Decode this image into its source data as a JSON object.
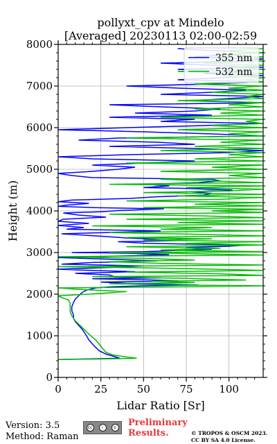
{
  "chart_data": {
    "type": "line",
    "title_line1": "pollyxt_cpv at Mindelo",
    "title_line2": "[Averaged] 20230113 02:00-02:59",
    "xlabel": "Lidar Ratio [Sr]",
    "ylabel": "Height (m)",
    "xlim": [
      0,
      120
    ],
    "ylim": [
      0,
      8000
    ],
    "x_ticks": [
      0,
      25,
      50,
      75,
      100
    ],
    "x_tick_labels": [
      "0",
      "25",
      "50",
      "75",
      "100"
    ],
    "y_ticks": [
      0,
      1000,
      2000,
      3000,
      4000,
      5000,
      6000,
      7000,
      8000
    ],
    "y_tick_labels": [
      "0",
      "1000",
      "2000",
      "3000",
      "4000",
      "5000",
      "6000",
      "7000",
      "8000"
    ],
    "grid": true,
    "legend_position": "top-right",
    "series": [
      {
        "name": "355 nm",
        "color": "#0000ff",
        "points": [
          [
            0,
            430
          ],
          [
            12,
            440
          ],
          [
            24,
            450
          ],
          [
            36,
            460
          ],
          [
            33,
            500
          ],
          [
            28,
            560
          ],
          [
            24,
            640
          ],
          [
            21,
            760
          ],
          [
            18,
            900
          ],
          [
            16,
            1040
          ],
          [
            14,
            1160
          ],
          [
            12,
            1250
          ],
          [
            10,
            1340
          ],
          [
            9,
            1420
          ],
          [
            9,
            1500
          ],
          [
            8,
            1600
          ],
          [
            8,
            1700
          ],
          [
            9,
            1800
          ],
          [
            10,
            1880
          ],
          [
            12,
            1960
          ],
          [
            14,
            2040
          ],
          [
            17,
            2100
          ],
          [
            22,
            2150
          ],
          [
            32,
            2180
          ],
          [
            50,
            2200
          ],
          [
            82,
            2220
          ],
          [
            62,
            2240
          ],
          [
            40,
            2260
          ],
          [
            25,
            2290
          ],
          [
            70,
            2320
          ],
          [
            55,
            2340
          ],
          [
            20,
            2370
          ],
          [
            60,
            2390
          ],
          [
            33,
            2420
          ],
          [
            30,
            2460
          ],
          [
            10,
            2500
          ],
          [
            45,
            2540
          ],
          [
            12,
            2580
          ],
          [
            0,
            2600
          ],
          [
            15,
            2620
          ],
          [
            30,
            2640
          ],
          [
            42,
            2660
          ],
          [
            50,
            2680
          ],
          [
            2,
            2720
          ],
          [
            20,
            2760
          ],
          [
            58,
            2800
          ],
          [
            30,
            2840
          ],
          [
            0,
            2880
          ],
          [
            40,
            2920
          ],
          [
            65,
            2950
          ],
          [
            45,
            2980
          ],
          [
            8,
            3000
          ],
          [
            50,
            3020
          ],
          [
            70,
            3050
          ],
          [
            90,
            3080
          ],
          [
            75,
            3120
          ],
          [
            100,
            3150
          ],
          [
            110,
            3180
          ],
          [
            52,
            3220
          ],
          [
            35,
            3260
          ],
          [
            72,
            3290
          ],
          [
            55,
            3320
          ],
          [
            40,
            3350
          ],
          [
            22,
            3400
          ],
          [
            2,
            3450
          ],
          [
            28,
            3480
          ],
          [
            60,
            3520
          ],
          [
            5,
            3560
          ],
          [
            15,
            3600
          ],
          [
            0,
            3650
          ],
          [
            18,
            3700
          ],
          [
            0,
            3750
          ],
          [
            3,
            3800
          ],
          [
            28,
            3850
          ],
          [
            12,
            3900
          ],
          [
            3,
            3950
          ],
          [
            25,
            3980
          ],
          [
            36,
            4010
          ],
          [
            62,
            4050
          ],
          [
            20,
            4080
          ],
          [
            0,
            4110
          ],
          [
            5,
            4140
          ],
          [
            18,
            4180
          ],
          [
            0,
            4220
          ],
          [
            8,
            4260
          ],
          [
            42,
            4300
          ],
          [
            58,
            4340
          ],
          [
            85,
            4380
          ],
          [
            90,
            4420
          ],
          [
            78,
            4460
          ],
          [
            102,
            4500
          ],
          [
            75,
            4540
          ],
          [
            50,
            4560
          ],
          [
            65,
            4600
          ],
          [
            52,
            4640
          ],
          [
            82,
            4680
          ],
          [
            95,
            4720
          ],
          [
            90,
            4760
          ],
          [
            20,
            4800
          ],
          [
            8,
            4850
          ],
          [
            0,
            4900
          ],
          [
            20,
            4950
          ],
          [
            35,
            5000
          ],
          [
            45,
            5050
          ],
          [
            20,
            5100
          ],
          [
            50,
            5150
          ],
          [
            80,
            5200
          ],
          [
            20,
            5250
          ],
          [
            0,
            5300
          ],
          [
            40,
            5350
          ],
          [
            100,
            5400
          ],
          [
            120,
            5450
          ],
          [
            80,
            5500
          ],
          [
            30,
            5550
          ],
          [
            80,
            5600
          ],
          [
            58,
            5650
          ],
          [
            12,
            5700
          ],
          [
            35,
            5750
          ],
          [
            120,
            5800
          ],
          [
            90,
            5850
          ],
          [
            50,
            5900
          ],
          [
            0,
            5950
          ],
          [
            40,
            6000
          ],
          [
            85,
            6050
          ],
          [
            120,
            6100
          ],
          [
            60,
            6150
          ],
          [
            80,
            6200
          ],
          [
            30,
            6250
          ],
          [
            90,
            6300
          ],
          [
            45,
            6350
          ],
          [
            80,
            6400
          ],
          [
            95,
            6450
          ],
          [
            60,
            6500
          ],
          [
            30,
            6550
          ],
          [
            120,
            6600
          ],
          [
            80,
            6650
          ],
          [
            100,
            6700
          ],
          [
            120,
            6750
          ],
          [
            60,
            6800
          ],
          [
            90,
            6850
          ],
          [
            110,
            6900
          ],
          [
            70,
            6950
          ],
          [
            40,
            7000
          ],
          [
            90,
            7050
          ],
          [
            120,
            7100
          ],
          [
            70,
            7150
          ],
          [
            95,
            7200
          ],
          [
            120,
            7250
          ],
          [
            85,
            7300
          ],
          [
            110,
            7350
          ],
          [
            70,
            7400
          ],
          [
            120,
            7450
          ],
          [
            90,
            7500
          ],
          [
            60,
            7550
          ],
          [
            110,
            7600
          ],
          [
            120,
            7650
          ],
          [
            80,
            7700
          ],
          [
            100,
            7750
          ],
          [
            120,
            7800
          ],
          [
            90,
            7850
          ],
          [
            70,
            7900
          ]
        ]
      },
      {
        "name": "532 nm",
        "color": "#00bb00",
        "points": [
          [
            0,
            430
          ],
          [
            10,
            435
          ],
          [
            20,
            440
          ],
          [
            35,
            450
          ],
          [
            46,
            460
          ],
          [
            40,
            490
          ],
          [
            32,
            540
          ],
          [
            28,
            600
          ],
          [
            26,
            700
          ],
          [
            24,
            800
          ],
          [
            22,
            900
          ],
          [
            19,
            1000
          ],
          [
            16,
            1120
          ],
          [
            13,
            1240
          ],
          [
            10,
            1360
          ],
          [
            8,
            1480
          ],
          [
            7,
            1580
          ],
          [
            7,
            1680
          ],
          [
            7,
            1780
          ],
          [
            6,
            1860
          ],
          [
            2,
            1920
          ],
          [
            0,
            1960
          ],
          [
            18,
            2000
          ],
          [
            40,
            2060
          ],
          [
            10,
            2120
          ],
          [
            0,
            2150
          ],
          [
            85,
            2180
          ],
          [
            120,
            2200
          ],
          [
            70,
            2220
          ],
          [
            30,
            2250
          ],
          [
            80,
            2280
          ],
          [
            55,
            2310
          ],
          [
            110,
            2340
          ],
          [
            75,
            2380
          ],
          [
            20,
            2420
          ],
          [
            120,
            2450
          ],
          [
            95,
            2490
          ],
          [
            40,
            2530
          ],
          [
            120,
            2570
          ],
          [
            90,
            2600
          ],
          [
            55,
            2630
          ],
          [
            0,
            2660
          ],
          [
            120,
            2700
          ],
          [
            60,
            2740
          ],
          [
            30,
            2780
          ],
          [
            80,
            2820
          ],
          [
            50,
            2860
          ],
          [
            0,
            2900
          ],
          [
            120,
            2940
          ],
          [
            70,
            2980
          ],
          [
            30,
            3000
          ],
          [
            120,
            3020
          ],
          [
            60,
            3060
          ],
          [
            95,
            3100
          ],
          [
            40,
            3140
          ],
          [
            120,
            3180
          ],
          [
            75,
            3220
          ],
          [
            120,
            3260
          ],
          [
            50,
            3300
          ],
          [
            90,
            3330
          ],
          [
            40,
            3360
          ],
          [
            120,
            3400
          ],
          [
            80,
            3440
          ],
          [
            30,
            3480
          ],
          [
            120,
            3520
          ],
          [
            60,
            3560
          ],
          [
            90,
            3600
          ],
          [
            20,
            3640
          ],
          [
            120,
            3680
          ],
          [
            70,
            3720
          ],
          [
            120,
            3760
          ],
          [
            40,
            3800
          ],
          [
            120,
            3840
          ],
          [
            85,
            3880
          ],
          [
            30,
            3920
          ],
          [
            120,
            3960
          ],
          [
            90,
            4000
          ],
          [
            120,
            4040
          ],
          [
            50,
            4080
          ],
          [
            120,
            4120
          ],
          [
            80,
            4160
          ],
          [
            120,
            4200
          ],
          [
            40,
            4240
          ],
          [
            95,
            4280
          ],
          [
            120,
            4320
          ],
          [
            70,
            4360
          ],
          [
            120,
            4400
          ],
          [
            50,
            4440
          ],
          [
            100,
            4480
          ],
          [
            120,
            4520
          ],
          [
            75,
            4560
          ],
          [
            120,
            4600
          ],
          [
            30,
            4640
          ],
          [
            120,
            4680
          ],
          [
            90,
            4720
          ],
          [
            60,
            4760
          ],
          [
            120,
            4800
          ],
          [
            100,
            4850
          ],
          [
            120,
            4900
          ],
          [
            60,
            4950
          ],
          [
            120,
            5000
          ],
          [
            90,
            5050
          ],
          [
            120,
            5100
          ],
          [
            40,
            5150
          ],
          [
            120,
            5200
          ],
          [
            80,
            5250
          ],
          [
            120,
            5300
          ],
          [
            100,
            5350
          ],
          [
            120,
            5400
          ],
          [
            60,
            5450
          ],
          [
            120,
            5500
          ],
          [
            80,
            5550
          ],
          [
            120,
            5600
          ],
          [
            95,
            5650
          ],
          [
            120,
            5700
          ],
          [
            40,
            5750
          ],
          [
            120,
            5800
          ],
          [
            100,
            5850
          ],
          [
            120,
            5900
          ],
          [
            70,
            5950
          ],
          [
            120,
            6000
          ],
          [
            90,
            6050
          ],
          [
            120,
            6100
          ],
          [
            110,
            6150
          ],
          [
            120,
            6200
          ],
          [
            60,
            6250
          ],
          [
            120,
            6300
          ],
          [
            95,
            6350
          ],
          [
            120,
            6400
          ],
          [
            80,
            6450
          ],
          [
            120,
            6500
          ],
          [
            100,
            6550
          ],
          [
            120,
            6600
          ],
          [
            70,
            6650
          ],
          [
            120,
            6700
          ],
          [
            110,
            6750
          ],
          [
            120,
            6800
          ],
          [
            90,
            6850
          ],
          [
            120,
            6900
          ],
          [
            100,
            6950
          ],
          [
            120,
            7000
          ],
          [
            80,
            7050
          ],
          [
            120,
            7100
          ],
          [
            110,
            7150
          ],
          [
            120,
            7200
          ],
          [
            95,
            7250
          ],
          [
            120,
            7300
          ],
          [
            70,
            7350
          ],
          [
            120,
            7400
          ],
          [
            100,
            7450
          ],
          [
            120,
            7500
          ],
          [
            85,
            7550
          ],
          [
            120,
            7600
          ],
          [
            110,
            7650
          ],
          [
            120,
            7700
          ],
          [
            90,
            7750
          ],
          [
            120,
            7800
          ],
          [
            100,
            7850
          ],
          [
            120,
            7900
          ]
        ]
      }
    ]
  },
  "footer": {
    "version": "Version: 3.5",
    "method": "Method: Raman",
    "preliminary_line1": "Preliminary",
    "preliminary_line2": "Results.",
    "copyright_line1": "© TROPOS & OSCM 2023.",
    "copyright_line2": "CC BY SA 4.0 License."
  },
  "badge": {
    "cc": "cc",
    "by": "i",
    "sa": "o"
  }
}
